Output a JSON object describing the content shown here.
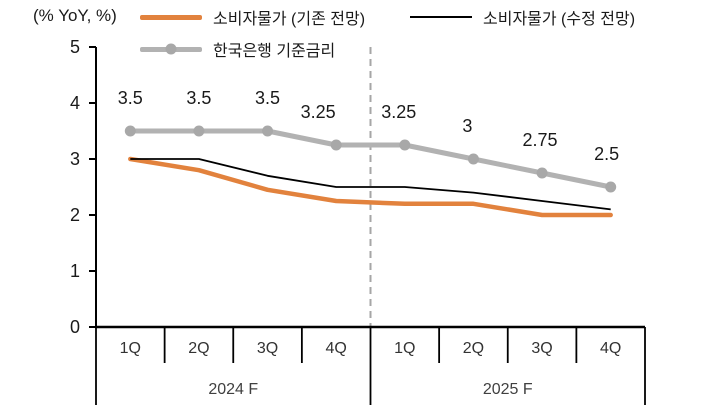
{
  "chart_data": {
    "type": "line",
    "title": "",
    "ylabel": "(% YoY, %)",
    "xlabel": "",
    "ylim": [
      0,
      5
    ],
    "yticks": [
      0,
      1,
      2,
      3,
      4,
      5
    ],
    "grid": false,
    "legend_position": "top",
    "categories": [
      "1Q",
      "2Q",
      "3Q",
      "4Q",
      "1Q",
      "2Q",
      "3Q",
      "4Q"
    ],
    "category_groups": [
      {
        "label": "2024 F",
        "span": 4
      },
      {
        "label": "2025 F",
        "span": 4
      }
    ],
    "divider_between_groups": true,
    "divider_color": "#A6A6A6",
    "series": [
      {
        "name": "소비자물가 (기존 전망)",
        "color": "#E2823D",
        "stroke_width": 4.5,
        "markers": false,
        "values": [
          3.0,
          2.8,
          2.45,
          2.25,
          2.2,
          2.2,
          2.0,
          2.0
        ]
      },
      {
        "name": "소비자물가 (수정 전망)",
        "color": "#000000",
        "stroke_width": 1.8,
        "markers": false,
        "values": [
          3.0,
          3.0,
          2.7,
          2.5,
          2.5,
          2.4,
          2.25,
          2.1
        ]
      },
      {
        "name": "한국은행 기준금리",
        "color": "#B2B2B2",
        "marker_color": "#A8A8A8",
        "stroke_width": 5,
        "markers": true,
        "values": [
          3.5,
          3.5,
          3.5,
          3.25,
          3.25,
          3.0,
          2.75,
          2.5
        ],
        "data_labels": [
          "3.5",
          "3.5",
          "3.5",
          "3.25",
          "3.25",
          "3",
          "2.75",
          "2.5"
        ],
        "label_dx": [
          0,
          0,
          0,
          -18,
          -6,
          -6,
          -2,
          -4
        ],
        "label_dy": -33
      }
    ]
  }
}
